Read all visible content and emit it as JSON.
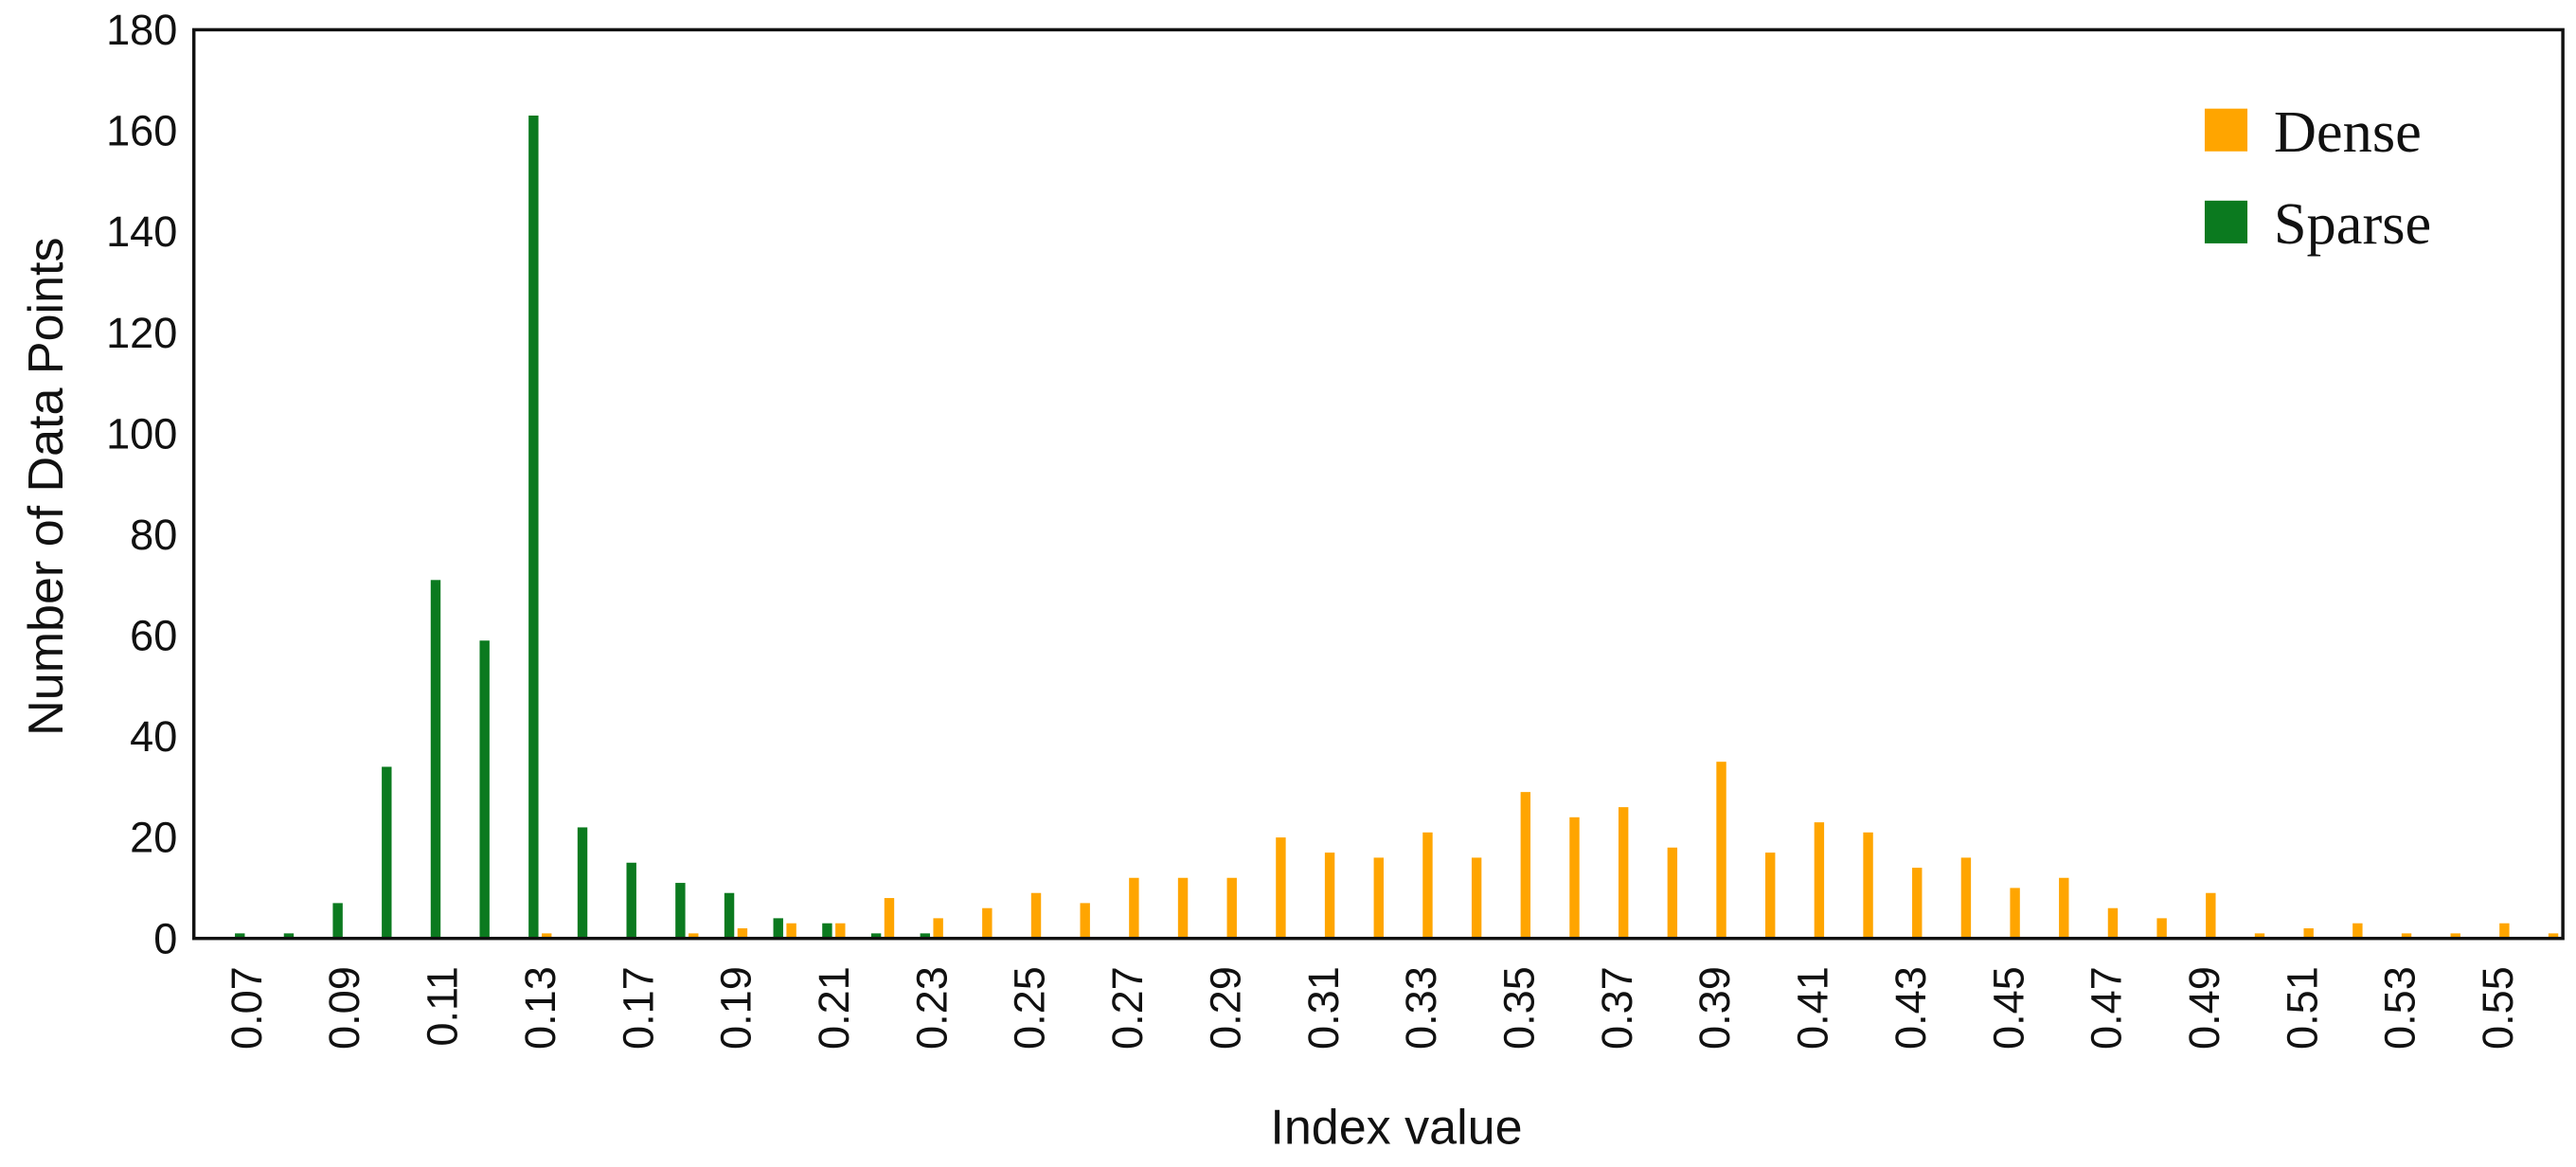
{
  "chart_data": {
    "type": "bar",
    "x_label": "Index value",
    "y_label": "Number of Data Points",
    "categories": [
      "0.07",
      null,
      "0.09",
      null,
      "0.11",
      null,
      "0.13",
      null,
      "0.17",
      null,
      "0.19",
      null,
      "0.21",
      null,
      "0.23",
      null,
      "0.25",
      null,
      "0.27",
      null,
      "0.29",
      null,
      "0.31",
      null,
      "0.33",
      null,
      "0.35",
      null,
      "0.37",
      null,
      "0.39",
      null,
      "0.41",
      null,
      "0.43",
      null,
      "0.45",
      null,
      "0.47",
      null,
      "0.49",
      null,
      "0.51",
      null,
      "0.53",
      null,
      "0.55",
      null
    ],
    "series": [
      {
        "name": "Dense",
        "color": "#ffa500",
        "values": [
          0,
          0,
          0,
          0,
          0,
          0,
          1,
          0,
          0,
          1,
          2,
          3,
          3,
          8,
          4,
          6,
          9,
          7,
          12,
          12,
          12,
          20,
          17,
          16,
          21,
          16,
          29,
          24,
          26,
          18,
          35,
          17,
          23,
          21,
          14,
          16,
          10,
          12,
          6,
          4,
          9,
          1,
          2,
          3,
          1,
          1,
          3,
          1
        ]
      },
      {
        "name": "Sparse",
        "color": "#0b7a1f",
        "values": [
          1,
          1,
          7,
          34,
          71,
          59,
          163,
          22,
          15,
          11,
          9,
          4,
          3,
          1,
          1,
          0,
          0,
          0,
          0,
          0,
          0,
          0,
          0,
          0,
          0,
          0,
          0,
          0,
          0,
          0,
          0,
          0,
          0,
          0,
          0,
          0,
          0,
          0,
          0,
          0,
          0,
          0,
          0,
          0,
          0,
          0,
          0,
          0
        ]
      }
    ],
    "ylim": [
      0,
      180
    ],
    "yticks": [
      0,
      20,
      40,
      60,
      80,
      100,
      120,
      140,
      160,
      180
    ],
    "grid": false,
    "legend": "upper right"
  }
}
